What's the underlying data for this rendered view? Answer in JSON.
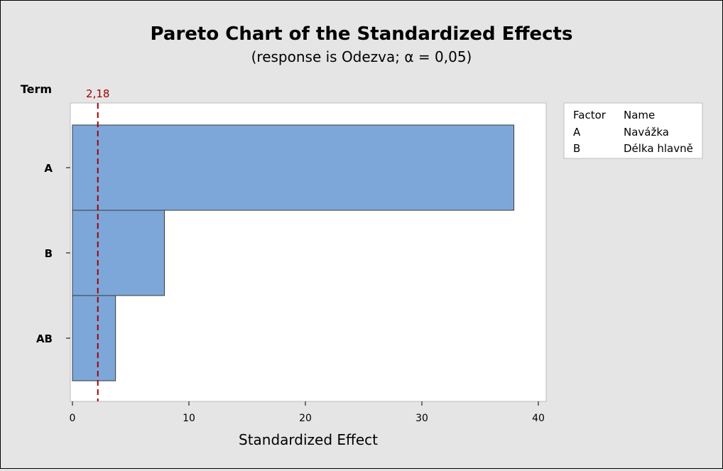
{
  "chart_data": {
    "type": "bar",
    "orientation": "horizontal",
    "title": "Pareto Chart of the Standardized Effects",
    "subtitle": "(response is Odezva; α = 0,05)",
    "ylabel": "Term",
    "xlabel": "Standardized Effect",
    "categories": [
      "A",
      "B",
      "AB"
    ],
    "values": [
      37.9,
      7.9,
      3.7
    ],
    "xlim": [
      0,
      41
    ],
    "xticks": [
      0,
      10,
      20,
      30,
      40
    ],
    "reference_line": {
      "value": 2.18,
      "label": "2,18",
      "style": "dashed",
      "color": "#a00000"
    },
    "bar_color": "#7da7d9",
    "grid": false,
    "legend": {
      "position": "right",
      "header": [
        "Factor",
        "Name"
      ],
      "rows": [
        {
          "factor": "A",
          "name": "Navážka"
        },
        {
          "factor": "B",
          "name": "Délka hlavně"
        }
      ]
    }
  }
}
